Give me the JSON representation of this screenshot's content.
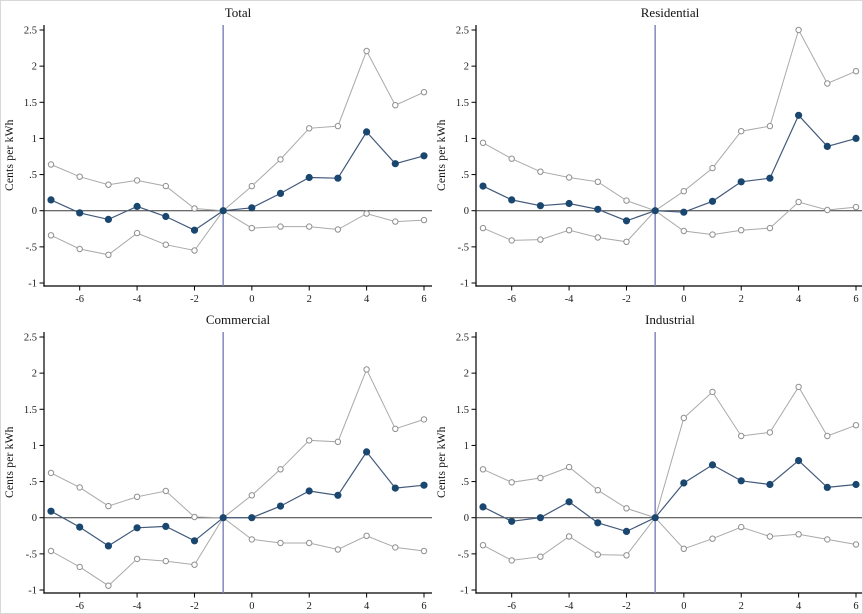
{
  "style": {
    "axis": "#000000",
    "zero_line": "#3a3a3a",
    "vline": "#7b80b8",
    "estimate_marker": "#1a476f",
    "estimate_line": "#42597a",
    "ci_line": "#a9a9a9",
    "ci_marker": "#8f8f8f",
    "tick_text": "#1a1a1a"
  },
  "chart_data": [
    {
      "type": "line",
      "title": "Total",
      "xlabel": "",
      "ylabel": "Cents per kWh",
      "x": [
        -7,
        -6,
        -5,
        -4,
        -3,
        -2,
        -1,
        0,
        1,
        2,
        3,
        4,
        5,
        6
      ],
      "series": [
        {
          "name": "upper-ci",
          "role": "ci",
          "values": [
            0.64,
            0.47,
            0.36,
            0.42,
            0.34,
            0.03,
            0,
            0.34,
            0.71,
            1.14,
            1.17,
            2.21,
            1.46,
            1.64
          ]
        },
        {
          "name": "estimate",
          "role": "estimate",
          "values": [
            0.15,
            -0.03,
            -0.12,
            0.06,
            -0.08,
            -0.27,
            0,
            0.04,
            0.24,
            0.46,
            0.45,
            1.09,
            0.65,
            0.76
          ]
        },
        {
          "name": "lower-ci",
          "role": "ci",
          "values": [
            -0.34,
            -0.53,
            -0.61,
            -0.31,
            -0.47,
            -0.55,
            0,
            -0.24,
            -0.22,
            -0.22,
            -0.26,
            -0.04,
            -0.15,
            -0.13
          ]
        }
      ],
      "ylim": [
        -1,
        2.5
      ],
      "y_ticks": [
        "2.5",
        "2",
        "1.5",
        "1",
        ".5",
        "0",
        "-.5",
        "-1"
      ],
      "y_tick_values": [
        2.5,
        2,
        1.5,
        1,
        0.5,
        0,
        -0.5,
        -1
      ],
      "x_ticks": [
        -6,
        -4,
        -2,
        0,
        2,
        4,
        6
      ],
      "vline_x": -1,
      "hline_y": 0,
      "grid": false,
      "legend": false
    },
    {
      "type": "line",
      "title": "Residential",
      "xlabel": "",
      "ylabel": "Cents per kWh",
      "x": [
        -7,
        -6,
        -5,
        -4,
        -3,
        -2,
        -1,
        0,
        1,
        2,
        3,
        4,
        5,
        6
      ],
      "series": [
        {
          "name": "upper-ci",
          "role": "ci",
          "values": [
            0.94,
            0.72,
            0.54,
            0.46,
            0.4,
            0.14,
            0,
            0.27,
            0.59,
            1.1,
            1.17,
            2.5,
            1.76,
            1.93
          ]
        },
        {
          "name": "estimate",
          "role": "estimate",
          "values": [
            0.34,
            0.15,
            0.07,
            0.1,
            0.02,
            -0.14,
            0,
            -0.02,
            0.13,
            0.4,
            0.45,
            1.32,
            0.89,
            1.0
          ]
        },
        {
          "name": "lower-ci",
          "role": "ci",
          "values": [
            -0.24,
            -0.41,
            -0.4,
            -0.27,
            -0.37,
            -0.43,
            0,
            -0.28,
            -0.33,
            -0.27,
            -0.24,
            0.12,
            0.01,
            0.05
          ]
        }
      ],
      "ylim": [
        -1,
        2.5
      ],
      "y_ticks": [
        "2.5",
        "2",
        "1.5",
        "1",
        ".5",
        "0",
        "-.5",
        "-1"
      ],
      "y_tick_values": [
        2.5,
        2,
        1.5,
        1,
        0.5,
        0,
        -0.5,
        -1
      ],
      "x_ticks": [
        -6,
        -4,
        -2,
        0,
        2,
        4,
        6
      ],
      "vline_x": -1,
      "hline_y": 0,
      "grid": false,
      "legend": false
    },
    {
      "type": "line",
      "title": "Commercial",
      "xlabel": "",
      "ylabel": "Cents per kWh",
      "x": [
        -7,
        -6,
        -5,
        -4,
        -3,
        -2,
        -1,
        0,
        1,
        2,
        3,
        4,
        5,
        6
      ],
      "series": [
        {
          "name": "upper-ci",
          "role": "ci",
          "values": [
            0.62,
            0.42,
            0.16,
            0.29,
            0.37,
            0.01,
            0,
            0.31,
            0.67,
            1.07,
            1.05,
            2.05,
            1.23,
            1.36
          ]
        },
        {
          "name": "estimate",
          "role": "estimate",
          "values": [
            0.09,
            -0.13,
            -0.39,
            -0.14,
            -0.12,
            -0.32,
            0,
            0.0,
            0.16,
            0.37,
            0.31,
            0.91,
            0.41,
            0.45
          ]
        },
        {
          "name": "lower-ci",
          "role": "ci",
          "values": [
            -0.46,
            -0.68,
            -0.94,
            -0.57,
            -0.6,
            -0.65,
            0,
            -0.3,
            -0.35,
            -0.35,
            -0.44,
            -0.25,
            -0.41,
            -0.46
          ]
        }
      ],
      "ylim": [
        -1,
        2.5
      ],
      "y_ticks": [
        "2.5",
        "2",
        "1.5",
        "1",
        ".5",
        "0",
        "-.5",
        "-1"
      ],
      "y_tick_values": [
        2.5,
        2,
        1.5,
        1,
        0.5,
        0,
        -0.5,
        -1
      ],
      "x_ticks": [
        -6,
        -4,
        -2,
        0,
        2,
        4,
        6
      ],
      "vline_x": -1,
      "hline_y": 0,
      "grid": false,
      "legend": false
    },
    {
      "type": "line",
      "title": "Industrial",
      "xlabel": "",
      "ylabel": "Cents per kWh",
      "x": [
        -7,
        -6,
        -5,
        -4,
        -3,
        -2,
        -1,
        0,
        1,
        2,
        3,
        4,
        5,
        6
      ],
      "series": [
        {
          "name": "upper-ci",
          "role": "ci",
          "values": [
            0.67,
            0.49,
            0.55,
            0.7,
            0.38,
            0.13,
            0,
            1.38,
            1.74,
            1.13,
            1.18,
            1.81,
            1.13,
            1.28
          ]
        },
        {
          "name": "estimate",
          "role": "estimate",
          "values": [
            0.15,
            -0.05,
            0.0,
            0.22,
            -0.07,
            -0.19,
            0,
            0.48,
            0.73,
            0.51,
            0.46,
            0.79,
            0.42,
            0.46
          ]
        },
        {
          "name": "lower-ci",
          "role": "ci",
          "values": [
            -0.38,
            -0.59,
            -0.54,
            -0.26,
            -0.51,
            -0.52,
            0,
            -0.43,
            -0.29,
            -0.13,
            -0.26,
            -0.23,
            -0.3,
            -0.37
          ]
        }
      ],
      "ylim": [
        -1,
        2.5
      ],
      "y_ticks": [
        "2.5",
        "2",
        "1.5",
        "1",
        ".5",
        "0",
        "-.5",
        "-1"
      ],
      "y_tick_values": [
        2.5,
        2,
        1.5,
        1,
        0.5,
        0,
        -0.5,
        -1
      ],
      "x_ticks": [
        -6,
        -4,
        -2,
        0,
        2,
        4,
        6
      ],
      "vline_x": -1,
      "hline_y": 0,
      "grid": false,
      "legend": false
    }
  ]
}
